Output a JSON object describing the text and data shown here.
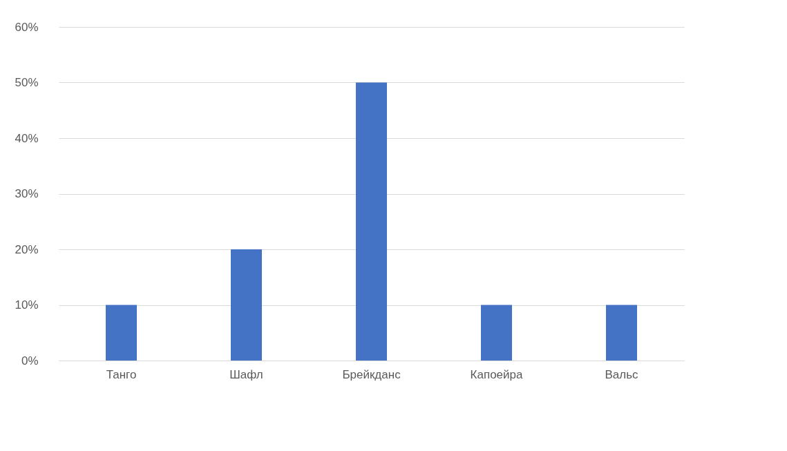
{
  "chart_data": {
    "type": "bar",
    "categories": [
      "Танго",
      "Шафл",
      "Брейкданс",
      "Капоейра",
      "Вальс"
    ],
    "values": [
      10,
      20,
      50,
      10,
      10
    ],
    "color": "#4472c4",
    "ylim": [
      0,
      60
    ],
    "yticks": [
      {
        "value": 0,
        "label": "0%"
      },
      {
        "value": 10,
        "label": "10%"
      },
      {
        "value": 20,
        "label": "20%"
      },
      {
        "value": 30,
        "label": "30%"
      },
      {
        "value": 40,
        "label": "40%"
      },
      {
        "value": 50,
        "label": "50%"
      },
      {
        "value": 60,
        "label": "60%"
      }
    ],
    "grid": "y"
  }
}
